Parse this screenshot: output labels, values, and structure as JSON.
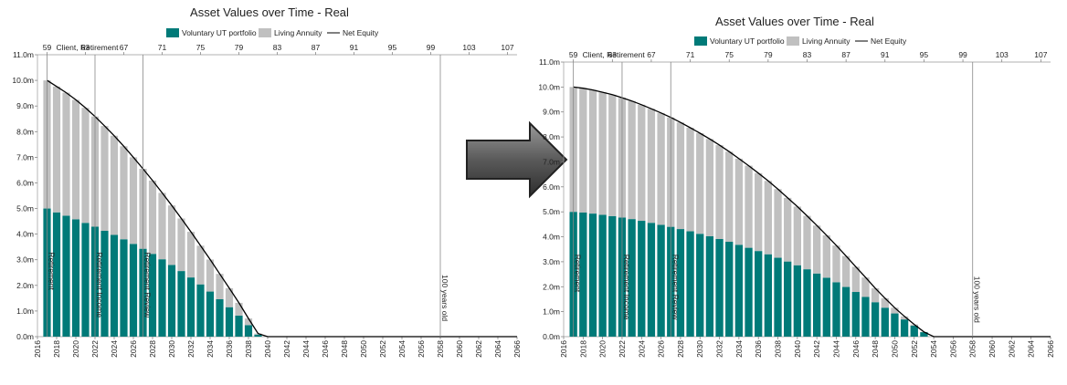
{
  "chart_data": [
    {
      "type": "bar",
      "stacked": true,
      "title": "Asset Values over Time - Real",
      "legend": [
        "Voluntary UT portfolio",
        "Living Annuity",
        "Net Equity"
      ],
      "legend_position": "top-center",
      "series": [
        {
          "name": "Voluntary UT portfolio",
          "color": "#007A78",
          "values": [
            5.0,
            4.85,
            4.72,
            4.58,
            4.44,
            4.29,
            4.13,
            3.97,
            3.8,
            3.62,
            3.43,
            3.23,
            3.02,
            2.8,
            2.56,
            2.31,
            2.04,
            1.76,
            1.46,
            1.15,
            0.82,
            0.45,
            0.08,
            0,
            0,
            0,
            0,
            0,
            0,
            0,
            0,
            0,
            0,
            0,
            0,
            0,
            0,
            0,
            0,
            0,
            0,
            0,
            0,
            0,
            0,
            0,
            0,
            0,
            0,
            0
          ]
        },
        {
          "name": "Living Annuity",
          "color": "#C0C0C0",
          "values": [
            5.0,
            4.91,
            4.8,
            4.66,
            4.49,
            4.3,
            4.09,
            3.87,
            3.63,
            3.38,
            3.12,
            2.86,
            2.59,
            2.32,
            2.05,
            1.78,
            1.51,
            1.25,
            0.99,
            0.74,
            0.5,
            0.26,
            0.04,
            0,
            0,
            0,
            0,
            0,
            0,
            0,
            0,
            0,
            0,
            0,
            0,
            0,
            0,
            0,
            0,
            0,
            0,
            0,
            0,
            0,
            0,
            0,
            0,
            0,
            0,
            0
          ]
        },
        {
          "name": "Net Equity",
          "color": "#000000",
          "line": true
        }
      ],
      "x_start": 2017,
      "x_end": 2066,
      "ylim": [
        0,
        11
      ],
      "y_ticks": [
        "0.0m",
        "1.0m",
        "2.0m",
        "3.0m",
        "4.0m",
        "5.0m",
        "6.0m",
        "7.0m",
        "8.0m",
        "9.0m",
        "10.0m",
        "11.0m"
      ],
      "x_ticks": [
        "2016",
        "2018",
        "2020",
        "2022",
        "2024",
        "2026",
        "2028",
        "2030",
        "2032",
        "2034",
        "2036",
        "2038",
        "2040",
        "2042",
        "2044",
        "2046",
        "2048",
        "2050",
        "2052",
        "2054",
        "2056",
        "2058",
        "2060",
        "2062",
        "2064",
        "2066"
      ],
      "age_ticks": [
        "59",
        "63",
        "67",
        "71",
        "75",
        "79",
        "83",
        "87",
        "91",
        "95",
        "99",
        "103",
        "107"
      ],
      "top_labels": [
        "Client, Retirement"
      ],
      "markers": [
        {
          "x": 2017,
          "label": "Retirement"
        },
        {
          "x": 2022,
          "label": "Retirement Income"
        },
        {
          "x": 2027,
          "label": "Retirement Review"
        },
        {
          "x": 2058,
          "label": "100 years old"
        }
      ]
    },
    {
      "type": "bar",
      "stacked": true,
      "title": "Asset Values over Time - Real",
      "legend": [
        "Voluntary UT portfolio",
        "Living Annuity",
        "Net Equity"
      ],
      "legend_position": "top-center",
      "series": [
        {
          "name": "Voluntary UT portfolio",
          "color": "#007A78",
          "values": [
            5.0,
            4.97,
            4.93,
            4.88,
            4.83,
            4.77,
            4.71,
            4.64,
            4.56,
            4.48,
            4.4,
            4.31,
            4.22,
            4.12,
            4.02,
            3.91,
            3.8,
            3.68,
            3.56,
            3.43,
            3.3,
            3.16,
            3.01,
            2.86,
            2.7,
            2.53,
            2.36,
            2.18,
            1.99,
            1.79,
            1.59,
            1.38,
            1.16,
            0.93,
            0.69,
            0.44,
            0.18,
            0,
            0,
            0,
            0,
            0,
            0,
            0,
            0,
            0,
            0,
            0,
            0,
            0
          ]
        },
        {
          "name": "Living Annuity",
          "color": "#C0C0C0",
          "values": [
            5.0,
            4.98,
            4.95,
            4.91,
            4.86,
            4.8,
            4.73,
            4.65,
            4.57,
            4.48,
            4.38,
            4.27,
            4.15,
            4.03,
            3.9,
            3.76,
            3.61,
            3.45,
            3.29,
            3.12,
            2.94,
            2.75,
            2.55,
            2.35,
            2.14,
            1.92,
            1.7,
            1.47,
            1.24,
            1.01,
            0.78,
            0.56,
            0.38,
            0.23,
            0.12,
            0.05,
            0.01,
            0,
            0,
            0,
            0,
            0,
            0,
            0,
            0,
            0,
            0,
            0,
            0,
            0
          ]
        },
        {
          "name": "Net Equity",
          "color": "#000000",
          "line": true
        }
      ],
      "x_start": 2017,
      "x_end": 2066,
      "ylim": [
        0,
        11
      ],
      "y_ticks": [
        "0.0m",
        "1.0m",
        "2.0m",
        "3.0m",
        "4.0m",
        "5.0m",
        "6.0m",
        "7.0m",
        "8.0m",
        "9.0m",
        "10.0m",
        "11.0m"
      ],
      "x_ticks": [
        "2016",
        "2018",
        "2020",
        "2022",
        "2024",
        "2026",
        "2028",
        "2030",
        "2032",
        "2034",
        "2036",
        "2038",
        "2040",
        "2042",
        "2044",
        "2046",
        "2048",
        "2050",
        "2052",
        "2054",
        "2056",
        "2058",
        "2060",
        "2062",
        "2064",
        "2066"
      ],
      "age_ticks": [
        "59",
        "63",
        "67",
        "71",
        "75",
        "79",
        "83",
        "87",
        "91",
        "95",
        "99",
        "103",
        "107"
      ],
      "top_labels": [
        "Client, Retirement"
      ],
      "markers": [
        {
          "x": 2017,
          "label": "Retirement"
        },
        {
          "x": 2022,
          "label": "Retirement Income"
        },
        {
          "x": 2027,
          "label": "Retirement Review"
        },
        {
          "x": 2058,
          "label": "100 years old"
        }
      ]
    }
  ],
  "transition_arrow": "right-arrow-icon"
}
